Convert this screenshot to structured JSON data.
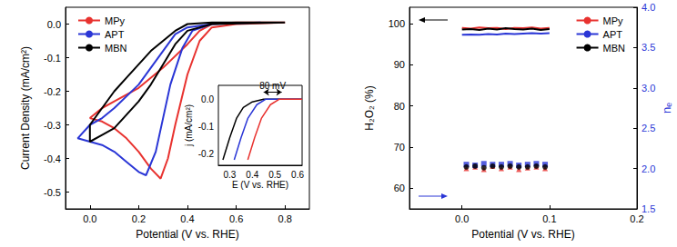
{
  "chart_data": [
    {
      "type": "line",
      "x_label": "Potential (V vs. RHE)",
      "y_label": "Current Density (mA/cm²)",
      "xlim": [
        -0.1,
        0.9
      ],
      "xticks": [
        {
          "value": 0,
          "label": "0.0"
        },
        0.2,
        0.4,
        0.6,
        0.8
      ],
      "ylim": [
        -0.55,
        0.05
      ],
      "yticks": [
        -0.5,
        -0.4,
        -0.3,
        -0.2,
        -0.1,
        {
          "value": 0,
          "label": "0.0"
        }
      ],
      "grid": false,
      "legend": "top-left",
      "series": [
        {
          "name": "MPy",
          "color": "#e8322f",
          "line_style": "solid",
          "x": [
            0.8,
            0.6,
            0.5,
            0.45,
            0.4,
            0.35,
            0.32,
            0.29,
            0.25,
            0.2,
            0.15,
            0.1,
            0.05,
            0.0,
            0.05,
            0.1,
            0.2,
            0.3,
            0.4,
            0.45,
            0.5,
            0.6,
            0.8
          ],
          "values": [
            0.005,
            0.0,
            -0.01,
            -0.05,
            -0.15,
            -0.3,
            -0.4,
            -0.46,
            -0.43,
            -0.38,
            -0.34,
            -0.31,
            -0.29,
            -0.28,
            -0.25,
            -0.23,
            -0.19,
            -0.13,
            -0.06,
            -0.02,
            0.0,
            0.005,
            0.005
          ]
        },
        {
          "name": "APT",
          "color": "#2a36d6",
          "line_style": "solid",
          "x": [
            0.7,
            0.5,
            0.42,
            0.38,
            0.33,
            0.3,
            0.27,
            0.23,
            0.2,
            0.15,
            0.1,
            0.05,
            0.0,
            -0.05,
            0.0,
            0.05,
            0.1,
            0.2,
            0.3,
            0.35,
            0.4,
            0.5,
            0.7
          ],
          "values": [
            0.005,
            0.0,
            -0.02,
            -0.07,
            -0.18,
            -0.28,
            -0.38,
            -0.45,
            -0.44,
            -0.41,
            -0.38,
            -0.36,
            -0.35,
            -0.34,
            -0.3,
            -0.28,
            -0.25,
            -0.18,
            -0.08,
            -0.03,
            -0.01,
            0.0,
            0.005
          ]
        },
        {
          "name": "MBN",
          "color": "#000000",
          "line_style": "solid",
          "x": [
            0.8,
            0.5,
            0.4,
            0.35,
            0.3,
            0.25,
            0.2,
            0.15,
            0.1,
            0.05,
            0.0,
            0.0,
            0.05,
            0.1,
            0.15,
            0.2,
            0.25,
            0.3,
            0.35,
            0.4,
            0.5,
            0.8
          ],
          "values": [
            0.005,
            0.0,
            -0.02,
            -0.06,
            -0.12,
            -0.18,
            -0.23,
            -0.27,
            -0.31,
            -0.33,
            -0.35,
            -0.3,
            -0.25,
            -0.2,
            -0.16,
            -0.12,
            -0.08,
            -0.05,
            -0.02,
            0.0,
            0.005,
            0.005
          ]
        }
      ]
    },
    {
      "type": "line",
      "x_label": "E (V vs. RHE)",
      "y_label": "j (mA/cm²)",
      "xlim": [
        0.25,
        0.62
      ],
      "xticks": [
        0.3,
        0.4,
        0.5,
        0.6
      ],
      "ylim": [
        -0.24,
        0.05
      ],
      "yticks": [
        -0.2,
        -0.1,
        {
          "value": 0,
          "label": "0.0"
        }
      ],
      "grid": false,
      "annotation": {
        "text": "80 mV",
        "x": [
          0.45,
          0.53
        ],
        "y": 0.025
      },
      "series": [
        {
          "name": "MBN",
          "color": "#000000",
          "line_style": "solid",
          "x": [
            0.27,
            0.3,
            0.33,
            0.36,
            0.4,
            0.45,
            0.62
          ],
          "values": [
            -0.22,
            -0.14,
            -0.07,
            -0.03,
            -0.01,
            0.0,
            0.0
          ]
        },
        {
          "name": "APT",
          "color": "#2a36d6",
          "line_style": "solid",
          "x": [
            0.32,
            0.35,
            0.38,
            0.42,
            0.46,
            0.62
          ],
          "values": [
            -0.22,
            -0.14,
            -0.07,
            -0.02,
            0.0,
            0.0
          ]
        },
        {
          "name": "MPy",
          "color": "#e8322f",
          "line_style": "solid",
          "x": [
            0.38,
            0.41,
            0.44,
            0.48,
            0.52,
            0.62
          ],
          "values": [
            -0.22,
            -0.14,
            -0.07,
            -0.02,
            0.0,
            0.0
          ]
        }
      ]
    },
    {
      "type": "line",
      "x_label": "Potential (V vs. RHE)",
      "y_label": "H₂O₂ (%)",
      "y2_label": "nₑ",
      "xlim": [
        -0.06,
        0.2
      ],
      "xticks": [
        {
          "value": 0,
          "label": "0.0"
        },
        0.1,
        0.2
      ],
      "ylim": [
        55,
        104
      ],
      "yticks": [
        60,
        70,
        80,
        90,
        100
      ],
      "y2lim": [
        1.5,
        4.0
      ],
      "y2ticks": [
        1.5,
        {
          "value": 2,
          "label": "2.0"
        },
        2.5,
        {
          "value": 3,
          "label": "3.0"
        },
        3.5,
        {
          "value": 4,
          "label": "4.0"
        }
      ],
      "grid": false,
      "legend": "top-right",
      "series": [
        {
          "name": "MPy",
          "type": "line",
          "color": "#e8322f",
          "line_style": "solid",
          "x": [
            0,
            0.01,
            0.02,
            0.03,
            0.04,
            0.05,
            0.06,
            0.07,
            0.08,
            0.09,
            0.1
          ],
          "values": [
            99.0,
            98.8,
            99.1,
            98.9,
            99.0,
            98.7,
            99.0,
            98.9,
            99.1,
            98.8,
            99.0
          ]
        },
        {
          "name": "APT",
          "type": "line",
          "color": "#2a36d6",
          "line_style": "solid",
          "x": [
            0,
            0.01,
            0.02,
            0.03,
            0.04,
            0.05,
            0.06,
            0.07,
            0.08,
            0.09,
            0.1
          ],
          "values": [
            97.3,
            97.4,
            97.3,
            97.5,
            97.4,
            97.6,
            97.5,
            97.6,
            97.7,
            97.6,
            97.7
          ]
        },
        {
          "name": "MBN",
          "type": "line",
          "color": "#000000",
          "line_style": "solid",
          "x": [
            0,
            0.01,
            0.02,
            0.03,
            0.04,
            0.05,
            0.06,
            0.07,
            0.08,
            0.09,
            0.1
          ],
          "values": [
            98.6,
            98.7,
            98.5,
            98.8,
            98.6,
            98.9,
            98.7,
            98.6,
            98.8,
            98.5,
            98.7
          ]
        },
        {
          "name": "MPy",
          "type": "scatter",
          "axis": "y2",
          "color": "#e8322f",
          "marker": "triangle",
          "x": [
            0.005,
            0.015,
            0.025,
            0.035,
            0.045,
            0.055,
            0.065,
            0.075,
            0.085,
            0.095
          ],
          "values": [
            2.0,
            2.02,
            1.99,
            2.03,
            2.0,
            2.02,
            1.99,
            2.01,
            2.02,
            2.0
          ]
        },
        {
          "name": "APT",
          "type": "scatter",
          "axis": "y2",
          "color": "#2a36d6",
          "marker": "square",
          "x": [
            0.005,
            0.015,
            0.025,
            0.035,
            0.045,
            0.055,
            0.065,
            0.075,
            0.085,
            0.095
          ],
          "values": [
            2.05,
            2.04,
            2.06,
            2.05,
            2.05,
            2.06,
            2.04,
            2.05,
            2.06,
            2.05
          ]
        },
        {
          "name": "MBN",
          "type": "scatter",
          "axis": "y2",
          "color": "#000000",
          "marker": "circle",
          "x": [
            0.005,
            0.015,
            0.025,
            0.035,
            0.045,
            0.055,
            0.065,
            0.075,
            0.085,
            0.095
          ],
          "values": [
            2.02,
            2.03,
            2.01,
            2.03,
            2.02,
            2.03,
            2.02,
            2.02,
            2.03,
            2.02
          ]
        }
      ]
    }
  ]
}
